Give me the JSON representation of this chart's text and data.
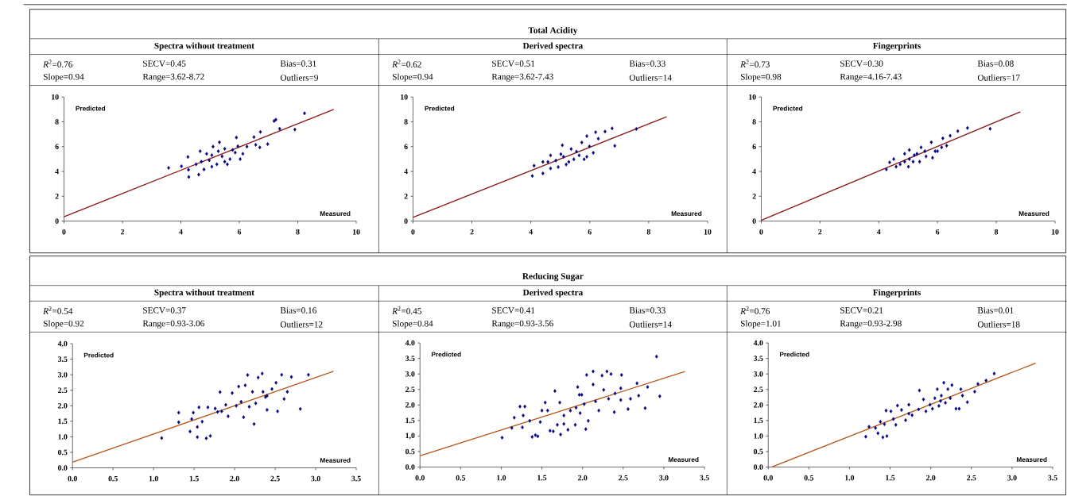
{
  "chart_data": [
    {
      "type": "scatter",
      "subtitle": "Spectra without treatment",
      "xlabel": "Measured",
      "ylabel": "Predicted",
      "annotations": [
        "*R*$^{2}$=0.76",
        "SECV=0.45",
        "Bias=0.31",
        "Slope=0.94",
        "Range=3.62-8.72",
        "Outliers=9"
      ],
      "xlim": [
        0,
        10
      ],
      "ylim": [
        0,
        10
      ],
      "xticks": [
        0,
        2,
        4,
        6,
        8,
        10
      ],
      "yticks": [
        0,
        2,
        4,
        6,
        8,
        10
      ],
      "series": [
        {
          "marker": "diamond",
          "color": "#000080",
          "x": [
            3.58,
            4.02,
            4.24,
            4.26,
            4.27,
            4.61,
            4.66,
            4.7,
            4.97,
            5.06,
            5.1,
            5.23,
            5.41,
            5.5,
            5.68,
            5.86,
            5.9,
            5.95,
            6.12,
            6.26,
            6.5,
            6.56,
            6.7,
            6.72,
            6.97,
            7.19,
            7.25,
            7.38,
            7.9,
            8.23,
            4.88,
            4.79,
            5.28,
            5.59,
            5.77,
            4.52,
            5.06,
            5.5,
            6.03,
            5.32
          ],
          "values": [
            4.29,
            4.42,
            5.17,
            4.13,
            3.56,
            3.75,
            5.63,
            4.79,
            4.9,
            5.31,
            6.0,
            4.58,
            5.21,
            5.83,
            5.0,
            5.52,
            6.73,
            6.04,
            5.42,
            6.0,
            6.77,
            6.15,
            5.94,
            7.19,
            6.21,
            8.06,
            8.17,
            7.44,
            7.38,
            8.69,
            5.42,
            4.17,
            5.63,
            4.58,
            5.73,
            4.58,
            4.38,
            4.79,
            5.0,
            6.35
          ]
        },
        {
          "type": "line",
          "marker": "none",
          "color": "#8b1a1a",
          "x": [
            0,
            9.23
          ],
          "values": [
            0.35,
            9.0
          ]
        }
      ]
    },
    {
      "type": "scatter",
      "title": "Total Acidity",
      "subtitle": "Derived spectra",
      "xlabel": "Measured",
      "ylabel": "Predicted",
      "annotations": [
        "*R*$^{2}$=0.62",
        "SECV=0.51",
        "Bias=0.33",
        "Slope=0.94",
        "Range=3.62-7.43",
        "Outliers=14"
      ],
      "xlim": [
        0,
        10
      ],
      "ylim": [
        0,
        10
      ],
      "xticks": [
        0,
        2,
        4,
        6,
        8,
        10
      ],
      "yticks": [
        0,
        2,
        4,
        6,
        8,
        10
      ],
      "series": [
        {
          "marker": "diamond",
          "color": "#000080",
          "x": [
            4.05,
            4.11,
            4.41,
            4.41,
            4.67,
            4.67,
            4.93,
            5.02,
            5.07,
            5.2,
            5.37,
            5.46,
            5.64,
            5.73,
            5.81,
            5.9,
            5.99,
            6.12,
            6.2,
            6.29,
            6.52,
            6.76,
            6.85,
            7.58,
            4.85,
            5.29,
            5.55,
            4.58,
            5.11,
            5.9
          ],
          "values": [
            3.63,
            4.46,
            3.84,
            4.77,
            4.25,
            5.29,
            4.36,
            5.39,
            6.12,
            4.56,
            5.81,
            4.98,
            5.29,
            6.33,
            4.98,
            6.85,
            6.02,
            5.5,
            7.16,
            6.64,
            7.22,
            7.47,
            6.06,
            7.43,
            4.88,
            4.77,
            5.6,
            4.77,
            5.19,
            5.19
          ]
        },
        {
          "type": "line",
          "marker": "none",
          "color": "#8b1a1a",
          "x": [
            0,
            8.61
          ],
          "values": [
            0.3,
            8.4
          ]
        }
      ]
    },
    {
      "type": "scatter",
      "subtitle": "Fingerprints",
      "xlabel": "Measured",
      "ylabel": "Predicted",
      "annotations": [
        "*R*$^{2}$=0.73",
        "SECV=0.30",
        "Bias=0.08",
        "Slope=0.98",
        "Range=4.16-7.43",
        "Outliers=17"
      ],
      "xlim": [
        0,
        10
      ],
      "ylim": [
        0,
        10
      ],
      "xticks": [
        0,
        2,
        4,
        6,
        8,
        10
      ],
      "yticks": [
        0,
        2,
        4,
        6,
        8,
        10
      ],
      "series": [
        {
          "marker": "diamond",
          "color": "#000080",
          "x": [
            4.26,
            4.37,
            4.51,
            4.59,
            4.73,
            4.88,
            5.01,
            5.04,
            5.17,
            5.3,
            5.39,
            5.44,
            5.61,
            5.79,
            5.83,
            5.92,
            6.14,
            6.18,
            6.31,
            6.43,
            6.69,
            7.02,
            7.79,
            5.04,
            5.57,
            4.88,
            5.21,
            6.0
          ],
          "values": [
            4.17,
            4.73,
            5.0,
            4.38,
            4.58,
            5.42,
            4.38,
            5.73,
            4.79,
            5.42,
            4.79,
            5.94,
            5.21,
            6.35,
            5.1,
            5.63,
            5.94,
            6.67,
            6.08,
            6.88,
            7.25,
            7.5,
            7.44,
            5.0,
            5.63,
            4.79,
            5.31,
            5.63
          ]
        },
        {
          "type": "line",
          "marker": "none",
          "color": "#8b1a1a",
          "x": [
            0,
            8.82
          ],
          "values": [
            0.06,
            8.81
          ]
        }
      ]
    },
    {
      "type": "scatter",
      "subtitle": "Spectra without treatment",
      "xlabel": "Measured",
      "ylabel": "Predicted",
      "annotations": [
        "*R*$^{2}$=0.54",
        "SECV=0.37",
        "Bias=0.16",
        "Slope=0.92",
        "Range=0.93-3.06",
        "Outliers=12"
      ],
      "xlim": [
        0,
        3.5
      ],
      "ylim": [
        0,
        4
      ],
      "xticks": [
        {
          "value": 0,
          "label": "0.0"
        },
        {
          "value": 0.5,
          "label": "0.5"
        },
        {
          "value": 1,
          "label": "1.0"
        },
        {
          "value": 1.5,
          "label": "1.5"
        },
        {
          "value": 2,
          "label": "2.0"
        },
        {
          "value": 2.5,
          "label": "2.5"
        },
        {
          "value": 3,
          "label": "3.0"
        },
        {
          "value": 3.5,
          "label": "3.5"
        }
      ],
      "yticks": [
        {
          "value": 0,
          "label": "0.0"
        },
        {
          "value": 0.5,
          "label": "0.5"
        },
        {
          "value": 1,
          "label": "1.0"
        },
        {
          "value": 1.5,
          "label": "1.5"
        },
        {
          "value": 2,
          "label": "2.0"
        },
        {
          "value": 2.5,
          "label": "2.5"
        },
        {
          "value": 3,
          "label": "3.0"
        },
        {
          "value": 3.5,
          "label": "3.5"
        },
        {
          "value": 4,
          "label": "4.0"
        }
      ],
      "series": [
        {
          "marker": "diamond",
          "color": "#000080",
          "x": [
            1.1,
            1.31,
            1.31,
            1.45,
            1.47,
            1.49,
            1.54,
            1.54,
            1.56,
            1.6,
            1.65,
            1.67,
            1.7,
            1.76,
            1.82,
            1.84,
            1.89,
            1.92,
            1.97,
            2.02,
            2.05,
            2.08,
            2.11,
            2.13,
            2.16,
            2.18,
            2.22,
            2.24,
            2.26,
            2.29,
            2.34,
            2.35,
            2.38,
            2.4,
            2.46,
            2.51,
            2.53,
            2.58,
            2.61,
            2.65,
            2.7,
            2.81,
            2.91,
            2.4,
            1.79
          ],
          "values": [
            0.96,
            1.78,
            1.47,
            1.17,
            1.57,
            1.78,
            0.99,
            1.32,
            1.95,
            1.49,
            0.95,
            1.95,
            1.03,
            1.91,
            2.44,
            1.82,
            2.03,
            1.66,
            2.41,
            2.0,
            2.62,
            2.13,
            1.63,
            2.66,
            2.99,
            1.97,
            2.45,
            1.41,
            2.08,
            2.91,
            3.04,
            2.45,
            2.28,
            1.87,
            2.54,
            2.74,
            1.82,
            3.0,
            2.22,
            2.45,
            2.93,
            1.9,
            3.0,
            2.32,
            1.8
          ]
        },
        {
          "type": "line",
          "marker": "none",
          "color": "#b5581c",
          "x": [
            0,
            3.22
          ],
          "values": [
            0.18,
            3.11
          ]
        }
      ]
    },
    {
      "type": "scatter",
      "title": "Reducing Sugar",
      "subtitle": "Derived spectra",
      "xlabel": "Measured",
      "ylabel": "Predicted",
      "annotations": [
        "*R*$^{2}$=0.45",
        "SECV=0.41",
        "Bias=0.33",
        "Slope=0.84",
        "Range=0.93-3.56",
        "Outliers=14"
      ],
      "xlim": [
        0,
        3.5
      ],
      "ylim": [
        0,
        4
      ],
      "xticks": [
        {
          "value": 0,
          "label": "0.0"
        },
        {
          "value": 0.5,
          "label": "0.5"
        },
        {
          "value": 1,
          "label": "1.0"
        },
        {
          "value": 1.5,
          "label": "1.5"
        },
        {
          "value": 2,
          "label": "2.0"
        },
        {
          "value": 2.5,
          "label": "2.5"
        },
        {
          "value": 3,
          "label": "3.0"
        },
        {
          "value": 3.5,
          "label": "3.5"
        }
      ],
      "yticks": [
        {
          "value": 0,
          "label": "0.0"
        },
        {
          "value": 0.5,
          "label": "0.5"
        },
        {
          "value": 1,
          "label": "1,0"
        },
        {
          "value": 1.5,
          "label": "1.5"
        },
        {
          "value": 2,
          "label": "2.0"
        },
        {
          "value": 2.5,
          "label": "2.5"
        },
        {
          "value": 3,
          "label": "3.0"
        },
        {
          "value": 3.5,
          "label": "3.5"
        },
        {
          "value": 4,
          "label": "4.0"
        }
      ],
      "series": [
        {
          "marker": "diamond",
          "color": "#000080",
          "x": [
            1.01,
            1.13,
            1.16,
            1.23,
            1.26,
            1.27,
            1.29,
            1.35,
            1.38,
            1.42,
            1.45,
            1.48,
            1.5,
            1.54,
            1.57,
            1.6,
            1.64,
            1.66,
            1.69,
            1.72,
            1.73,
            1.77,
            1.77,
            1.82,
            1.85,
            1.91,
            1.92,
            1.94,
            1.96,
            1.97,
            2.02,
            2.04,
            2.05,
            2.07,
            2.13,
            2.13,
            2.16,
            2.2,
            2.24,
            2.26,
            2.3,
            2.32,
            2.35,
            2.39,
            2.4,
            2.47,
            2.48,
            2.56,
            2.59,
            2.67,
            2.69,
            2.77,
            2.8,
            2.91,
            2.95,
            1.99,
            2.47
          ],
          "values": [
            0.95,
            1.26,
            1.59,
            1.95,
            1.28,
            1.66,
            1.95,
            1.49,
            0.97,
            1.03,
            0.99,
            1.45,
            1.82,
            2.08,
            1.82,
            1.17,
            1.15,
            2.45,
            1.36,
            2.08,
            1.05,
            1.66,
            1.39,
            1.2,
            1.82,
            1.36,
            1.91,
            2.58,
            2.33,
            1.74,
            2.03,
            1.22,
            2.97,
            1.49,
            3.08,
            2.66,
            2.12,
            1.82,
            2.95,
            2.49,
            3.08,
            2.2,
            3.0,
            1.77,
            2.37,
            2.16,
            2.97,
            1.87,
            2.2,
            2.7,
            2.3,
            1.9,
            2.58,
            3.56,
            2.28,
            2.33,
            2.54
          ]
        },
        {
          "type": "line",
          "marker": "none",
          "color": "#b5581c",
          "x": [
            0,
            3.26
          ],
          "values": [
            0.36,
            3.08
          ]
        }
      ]
    },
    {
      "type": "scatter",
      "subtitle": "Fingerprints",
      "xlabel": "Measured",
      "ylabel": "Predicted",
      "annotations": [
        "*R*$^{2}$=0.76",
        "SECV=0.21",
        "Bias=0.01",
        "Slope=1.01",
        "Range=0.93-2.98",
        "Outliers=18"
      ],
      "xlim": [
        0,
        3.5
      ],
      "ylim": [
        0,
        4
      ],
      "xticks": [
        {
          "value": 0,
          "label": "0.0"
        },
        {
          "value": 0.5,
          "label": "0.5"
        },
        {
          "value": 1,
          "label": "1.0"
        },
        {
          "value": 1.5,
          "label": "1.5"
        },
        {
          "value": 2,
          "label": "2.0"
        },
        {
          "value": 2.5,
          "label": "2.5"
        },
        {
          "value": 3,
          "label": "3.0"
        },
        {
          "value": 3.5,
          "label": "3.5"
        }
      ],
      "yticks": [
        {
          "value": 0,
          "label": "0.0"
        },
        {
          "value": 0.5,
          "label": "0.5"
        },
        {
          "value": 1,
          "label": "1.0"
        },
        {
          "value": 1.5,
          "label": "1.5"
        },
        {
          "value": 2,
          "label": "2.0"
        },
        {
          "value": 2.5,
          "label": "2.5"
        },
        {
          "value": 3,
          "label": "3.0"
        },
        {
          "value": 3.5,
          "label": "3.5"
        },
        {
          "value": 4,
          "label": "4.0"
        }
      ],
      "series": [
        {
          "marker": "diamond",
          "color": "#000080",
          "x": [
            1.2,
            1.24,
            1.32,
            1.35,
            1.38,
            1.41,
            1.43,
            1.45,
            1.46,
            1.51,
            1.54,
            1.57,
            1.59,
            1.64,
            1.69,
            1.73,
            1.77,
            1.85,
            1.86,
            1.91,
            1.94,
            1.99,
            2.02,
            2.05,
            2.08,
            2.1,
            2.13,
            2.16,
            2.18,
            2.21,
            2.24,
            2.26,
            2.31,
            2.35,
            2.37,
            2.39,
            2.45,
            2.54,
            2.58,
            2.68,
            2.78,
            1.73,
            2.12
          ],
          "values": [
            0.98,
            1.3,
            1.26,
            1.09,
            1.46,
            0.96,
            1.38,
            1.82,
            1.0,
            1.8,
            1.55,
            1.36,
            1.98,
            1.84,
            1.51,
            1.72,
            1.67,
            1.86,
            2.47,
            2.18,
            1.8,
            2.01,
            1.88,
            2.22,
            2.51,
            1.97,
            2.3,
            2.72,
            2.07,
            2.51,
            2.22,
            2.64,
            1.88,
            1.88,
            2.51,
            2.3,
            2.09,
            2.43,
            2.68,
            2.79,
            3.01,
            2.01,
            2.13
          ]
        },
        {
          "type": "line",
          "marker": "none",
          "color": "#b5581c",
          "x": [
            0.04,
            3.29
          ],
          "values": [
            0,
            3.35
          ]
        }
      ]
    }
  ]
}
